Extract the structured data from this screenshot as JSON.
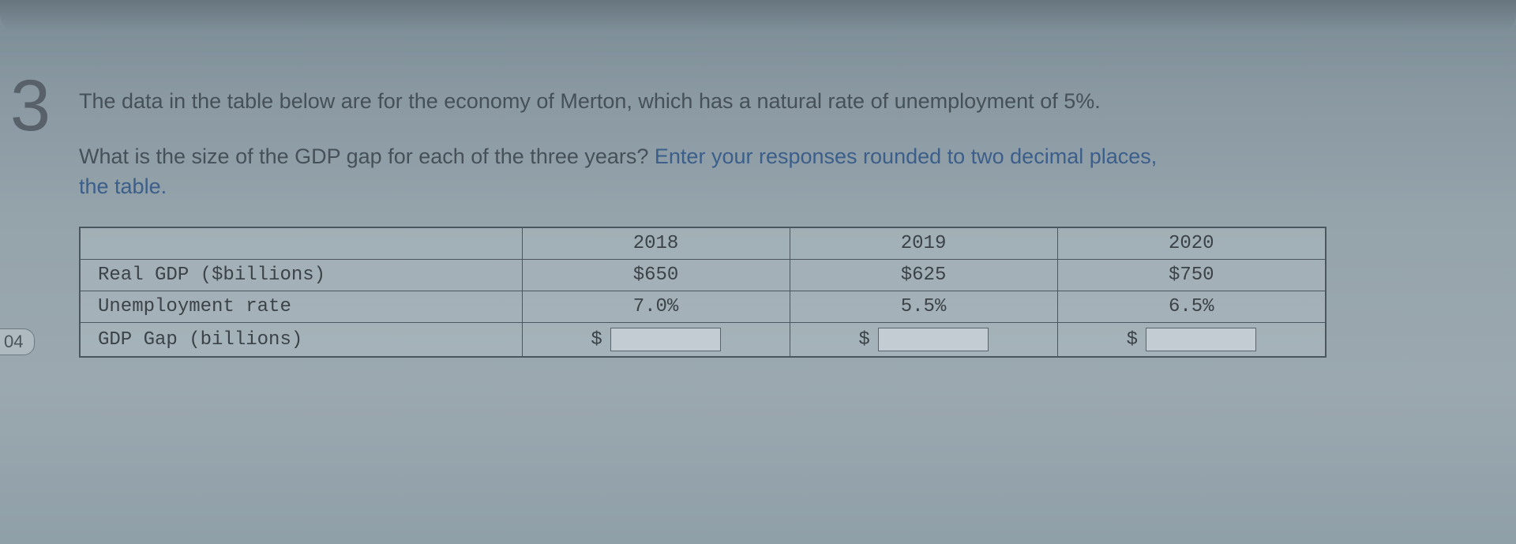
{
  "questionNumber": "3",
  "sideBadge": "04",
  "intro": "The data in the table below are for the economy of Merton, which has a natural rate of unemployment of 5%.",
  "promptLead": "What is the size of the GDP gap for each of the three years? ",
  "promptHint": "Enter your responses rounded to two decimal places,",
  "promptTail": "the table.",
  "table": {
    "years": [
      "2018",
      "2019",
      "2020"
    ],
    "rows": {
      "realgdp": {
        "label": "Real GDP ($billions)",
        "values": [
          "$650",
          "$625",
          "$750"
        ]
      },
      "unemp": {
        "label": "Unemployment rate",
        "values": [
          "7.0%",
          "5.5%",
          "6.5%"
        ]
      },
      "gap": {
        "label": "GDP Gap (billions)",
        "prefix": "$"
      }
    }
  }
}
